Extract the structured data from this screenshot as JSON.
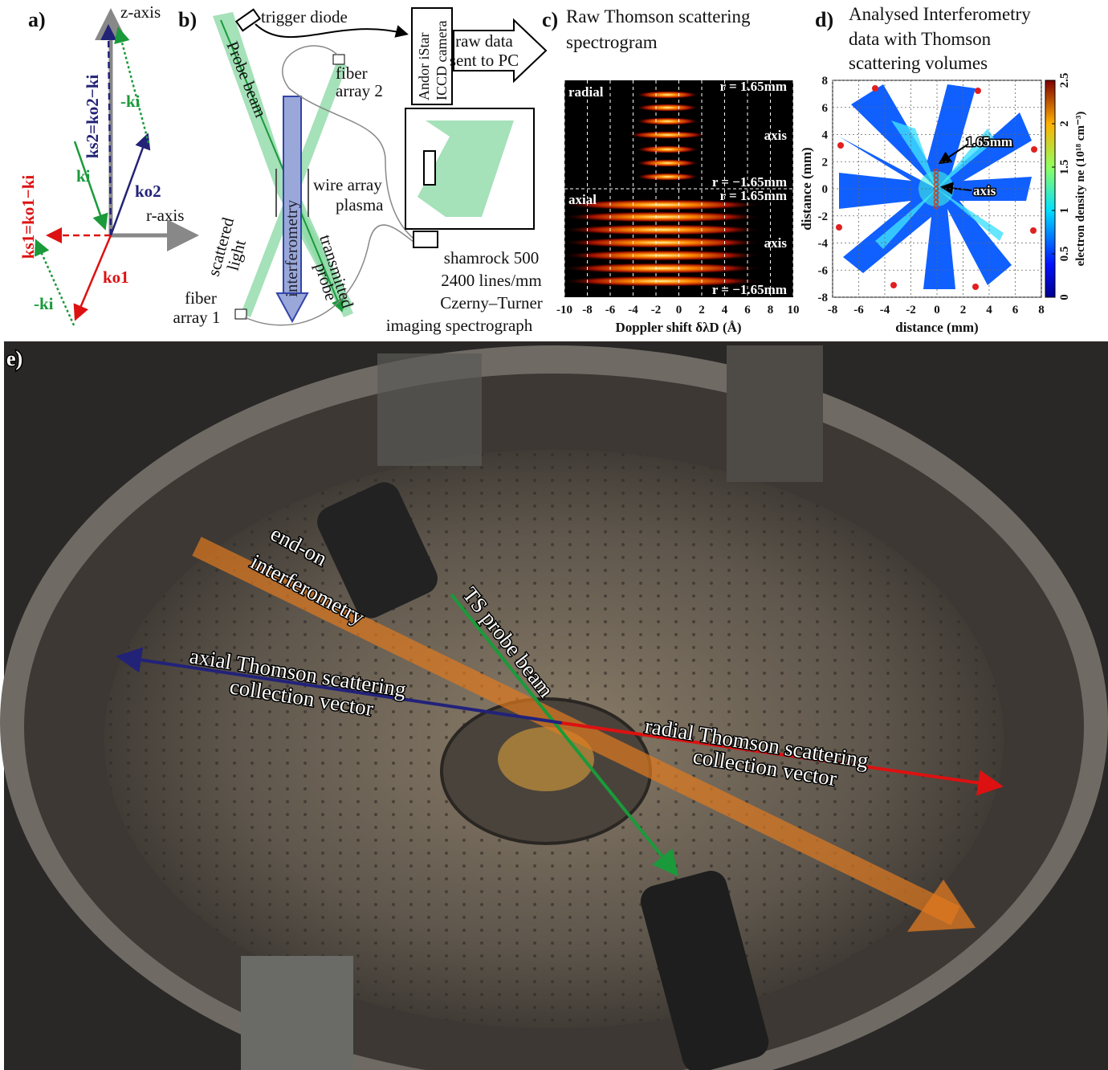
{
  "panel_a": {
    "label": "a)",
    "z_axis": "z-axis",
    "r_axis": "r-axis",
    "k_s2": "ks2=ko2−ki",
    "minus_ki_top": "-ki",
    "ki": "ki",
    "k_o2": "ko2",
    "k_s1": "ks1=ko1−ki",
    "minus_ki_bottom": "-ki",
    "k_o1": "ko1"
  },
  "panel_b": {
    "label": "b)",
    "trigger_diode": "trigger diode",
    "probe_beam": "Probe beam",
    "fiber_array_2": [
      "fiber",
      "array 2"
    ],
    "camera": [
      "Andor  iStar",
      "ICCD camera"
    ],
    "raw_data": [
      "raw data",
      "sent to PC"
    ],
    "wire_array": [
      "wire array",
      "plasma"
    ],
    "interferometry": "interferometry",
    "scattered_light": [
      "scattered",
      "light"
    ],
    "transmitted_probe": [
      "transmitted",
      "probe"
    ],
    "fiber_array_1": [
      "fiber",
      "array 1"
    ],
    "spectrograph": [
      "shamrock 500",
      "2400 lines/mm",
      "Czerny–Turner",
      "imaging spectrograph"
    ]
  },
  "panel_c": {
    "label": "c)",
    "title": [
      "Raw Thomson scattering",
      "spectrogram"
    ],
    "xlabel": "Doppler shift δλD (Å)",
    "xlim": [
      -10,
      10
    ],
    "xticks": [
      -10,
      -8,
      -6,
      -4,
      -2,
      0,
      2,
      4,
      6,
      8,
      10
    ],
    "radial": "radial",
    "axial": "axial",
    "r_top": "r = 1.65mm",
    "axis": "axis",
    "r_bottom": "r = −1.65mm"
  },
  "panel_d": {
    "label": "d)",
    "title": [
      "Analysed Interferometry",
      "data with Thomson",
      "scattering volumes"
    ],
    "xlabel": "distance (mm)",
    "ylabel": "distance (mm)",
    "xlim": [
      -8,
      8
    ],
    "ylim": [
      -8,
      8
    ],
    "xticks": [
      -8,
      -6,
      -4,
      -2,
      0,
      2,
      4,
      6,
      8
    ],
    "yticks": [
      -8,
      -6,
      -4,
      -2,
      0,
      2,
      4,
      6,
      8
    ],
    "colorbar_label": "electron density ne (10¹⁸ cm⁻³)",
    "clim": [
      0,
      2.5
    ],
    "cticks": [
      0,
      0.5,
      1,
      1.5,
      2,
      2.5
    ],
    "marker_1": "1.65mm",
    "marker_2": "axis"
  },
  "panel_e": {
    "label": "e)",
    "end_on": [
      "end-on",
      "interferometry"
    ],
    "ts_probe": "TS probe beam",
    "axial_vector": [
      "axial Thomson scattering",
      "collection vector"
    ],
    "radial_vector": [
      "radial Thomson scattering",
      "collection vector"
    ]
  }
}
